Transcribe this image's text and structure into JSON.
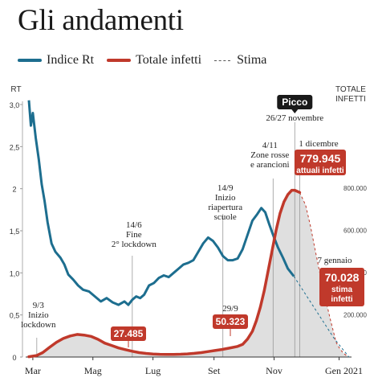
{
  "title": "Gli andamenti",
  "legend": {
    "rt": "Indice Rt",
    "infetti": "Totale infetti",
    "stima": "Stima"
  },
  "colors": {
    "rt": "#1d6e8f",
    "infetti": "#c0392b",
    "area": "#dcdcdc",
    "stima": "#555555"
  },
  "chart_data": {
    "type": "line",
    "x_labels": [
      "Mar",
      "Mag",
      "Lug",
      "Set",
      "Nov",
      "Gen 2021"
    ],
    "left_axis": {
      "label": "RT",
      "ticks": [
        "0",
        "0,5",
        "1,0",
        "1,5",
        "2",
        "2,5",
        "3,0"
      ],
      "ylim": [
        0,
        3
      ]
    },
    "right_axis": {
      "label_line1": "TOTALE",
      "label_line2": "INFETTI",
      "ticks": [
        "200.000",
        "400.000",
        "600.000",
        "800.000"
      ],
      "ylim": [
        0,
        840000
      ]
    },
    "series": [
      {
        "name": "Indice Rt",
        "axis": "left",
        "points": [
          [
            "2020-03-01",
            3.05
          ],
          [
            "2020-03-03",
            2.75
          ],
          [
            "2020-03-05",
            2.9
          ],
          [
            "2020-03-08",
            2.6
          ],
          [
            "2020-03-11",
            2.35
          ],
          [
            "2020-03-14",
            2.05
          ],
          [
            "2020-03-17",
            1.85
          ],
          [
            "2020-03-20",
            1.6
          ],
          [
            "2020-03-24",
            1.35
          ],
          [
            "2020-03-28",
            1.25
          ],
          [
            "2020-04-02",
            1.18
          ],
          [
            "2020-04-06",
            1.1
          ],
          [
            "2020-04-10",
            0.98
          ],
          [
            "2020-04-15",
            0.92
          ],
          [
            "2020-04-20",
            0.85
          ],
          [
            "2020-04-25",
            0.8
          ],
          [
            "2020-05-01",
            0.78
          ],
          [
            "2020-05-07",
            0.72
          ],
          [
            "2020-05-13",
            0.66
          ],
          [
            "2020-05-19",
            0.7
          ],
          [
            "2020-05-25",
            0.65
          ],
          [
            "2020-05-31",
            0.62
          ],
          [
            "2020-06-06",
            0.66
          ],
          [
            "2020-06-10",
            0.62
          ],
          [
            "2020-06-14",
            0.68
          ],
          [
            "2020-06-18",
            0.72
          ],
          [
            "2020-06-22",
            0.7
          ],
          [
            "2020-06-26",
            0.74
          ],
          [
            "2020-07-01",
            0.85
          ],
          [
            "2020-07-06",
            0.88
          ],
          [
            "2020-07-11",
            0.94
          ],
          [
            "2020-07-16",
            0.97
          ],
          [
            "2020-07-21",
            0.95
          ],
          [
            "2020-07-26",
            1.0
          ],
          [
            "2020-07-31",
            1.05
          ],
          [
            "2020-08-05",
            1.1
          ],
          [
            "2020-08-10",
            1.12
          ],
          [
            "2020-08-15",
            1.15
          ],
          [
            "2020-08-20",
            1.25
          ],
          [
            "2020-08-25",
            1.35
          ],
          [
            "2020-08-30",
            1.42
          ],
          [
            "2020-09-04",
            1.38
          ],
          [
            "2020-09-09",
            1.3
          ],
          [
            "2020-09-14",
            1.2
          ],
          [
            "2020-09-19",
            1.15
          ],
          [
            "2020-09-24",
            1.15
          ],
          [
            "2020-09-29",
            1.17
          ],
          [
            "2020-10-04",
            1.28
          ],
          [
            "2020-10-09",
            1.45
          ],
          [
            "2020-10-14",
            1.62
          ],
          [
            "2020-10-19",
            1.7
          ],
          [
            "2020-10-23",
            1.77
          ],
          [
            "2020-10-27",
            1.72
          ],
          [
            "2020-10-31",
            1.58
          ],
          [
            "2020-11-04",
            1.45
          ],
          [
            "2020-11-09",
            1.3
          ],
          [
            "2020-11-14",
            1.18
          ],
          [
            "2020-11-19",
            1.05
          ],
          [
            "2020-11-25",
            0.96
          ]
        ]
      },
      {
        "name": "Totale infetti",
        "axis": "right",
        "points": [
          [
            "2020-03-01",
            1500
          ],
          [
            "2020-03-09",
            7400
          ],
          [
            "2020-03-15",
            21000
          ],
          [
            "2020-03-22",
            46000
          ],
          [
            "2020-03-29",
            70000
          ],
          [
            "2020-04-05",
            88000
          ],
          [
            "2020-04-12",
            100000
          ],
          [
            "2020-04-19",
            107000
          ],
          [
            "2020-04-26",
            104000
          ],
          [
            "2020-05-03",
            98000
          ],
          [
            "2020-05-10",
            84000
          ],
          [
            "2020-05-17",
            66000
          ],
          [
            "2020-05-24",
            55000
          ],
          [
            "2020-05-31",
            43000
          ],
          [
            "2020-06-07",
            35000
          ],
          [
            "2020-06-14",
            27485
          ],
          [
            "2020-06-21",
            21000
          ],
          [
            "2020-06-28",
            17000
          ],
          [
            "2020-07-05",
            14500
          ],
          [
            "2020-07-12",
            13000
          ],
          [
            "2020-07-19",
            12500
          ],
          [
            "2020-07-26",
            12500
          ],
          [
            "2020-08-02",
            13500
          ],
          [
            "2020-08-09",
            15000
          ],
          [
            "2020-08-16",
            17500
          ],
          [
            "2020-08-23",
            21000
          ],
          [
            "2020-08-30",
            26000
          ],
          [
            "2020-09-06",
            31000
          ],
          [
            "2020-09-13",
            36000
          ],
          [
            "2020-09-20",
            42000
          ],
          [
            "2020-09-29",
            50323
          ],
          [
            "2020-10-04",
            60000
          ],
          [
            "2020-10-09",
            85000
          ],
          [
            "2020-10-14",
            122000
          ],
          [
            "2020-10-18",
            172000
          ],
          [
            "2020-10-22",
            235000
          ],
          [
            "2020-10-26",
            315000
          ],
          [
            "2020-10-30",
            410000
          ],
          [
            "2020-11-03",
            505000
          ],
          [
            "2020-11-07",
            600000
          ],
          [
            "2020-11-11",
            680000
          ],
          [
            "2020-11-15",
            735000
          ],
          [
            "2020-11-19",
            770000
          ],
          [
            "2020-11-23",
            790000
          ],
          [
            "2020-11-26",
            790000
          ],
          [
            "2020-12-01",
            779945
          ]
        ]
      },
      {
        "name": "Stima",
        "axis": "right",
        "points": [
          [
            "2020-12-01",
            779945
          ],
          [
            "2020-12-07",
            720000
          ],
          [
            "2020-12-12",
            620000
          ],
          [
            "2020-12-17",
            500000
          ],
          [
            "2020-12-22",
            385000
          ],
          [
            "2020-12-27",
            280000
          ],
          [
            "2021-01-01",
            180000
          ],
          [
            "2021-01-07",
            70028
          ],
          [
            "2021-01-10",
            45000
          ],
          [
            "2021-01-14",
            20000
          ],
          [
            "2021-01-18",
            5000
          ]
        ]
      },
      {
        "name": "Stima Rt",
        "axis": "left",
        "points": [
          [
            "2020-11-25",
            0.96
          ],
          [
            "2020-12-15",
            0.6
          ],
          [
            "2021-01-05",
            0.22
          ],
          [
            "2021-01-20",
            0.0
          ]
        ]
      }
    ],
    "annotations": [
      {
        "date": "2020-03-09",
        "lines": [
          "9/3",
          "Inizio",
          "lockdown"
        ]
      },
      {
        "date": "2020-06-14",
        "lines": [
          "14/6",
          "Fine",
          "2° lockdown"
        ]
      },
      {
        "date": "2020-09-14",
        "lines": [
          "14/9",
          "Inizio",
          "riapertura",
          "scuole"
        ]
      },
      {
        "date": "2020-11-04",
        "lines": [
          "4/11",
          "Zone rosse",
          "e arancioni"
        ]
      },
      {
        "date": "2020-11-26",
        "lines": [
          "26/27 novembre"
        ],
        "badge": "Picco"
      },
      {
        "date": "2020-12-01",
        "lines": [
          "1 dicembre"
        ],
        "value": "779.945",
        "sub": "attuali infetti"
      },
      {
        "date": "2021-01-07",
        "lines": [
          "7 gennaio"
        ],
        "value": "70.028",
        "sub": "stima infetti"
      },
      {
        "date": "2020-06-14",
        "value": "27.485"
      },
      {
        "date": "2020-09-29",
        "lines": [
          "29/9"
        ],
        "value": "50.323"
      }
    ]
  }
}
